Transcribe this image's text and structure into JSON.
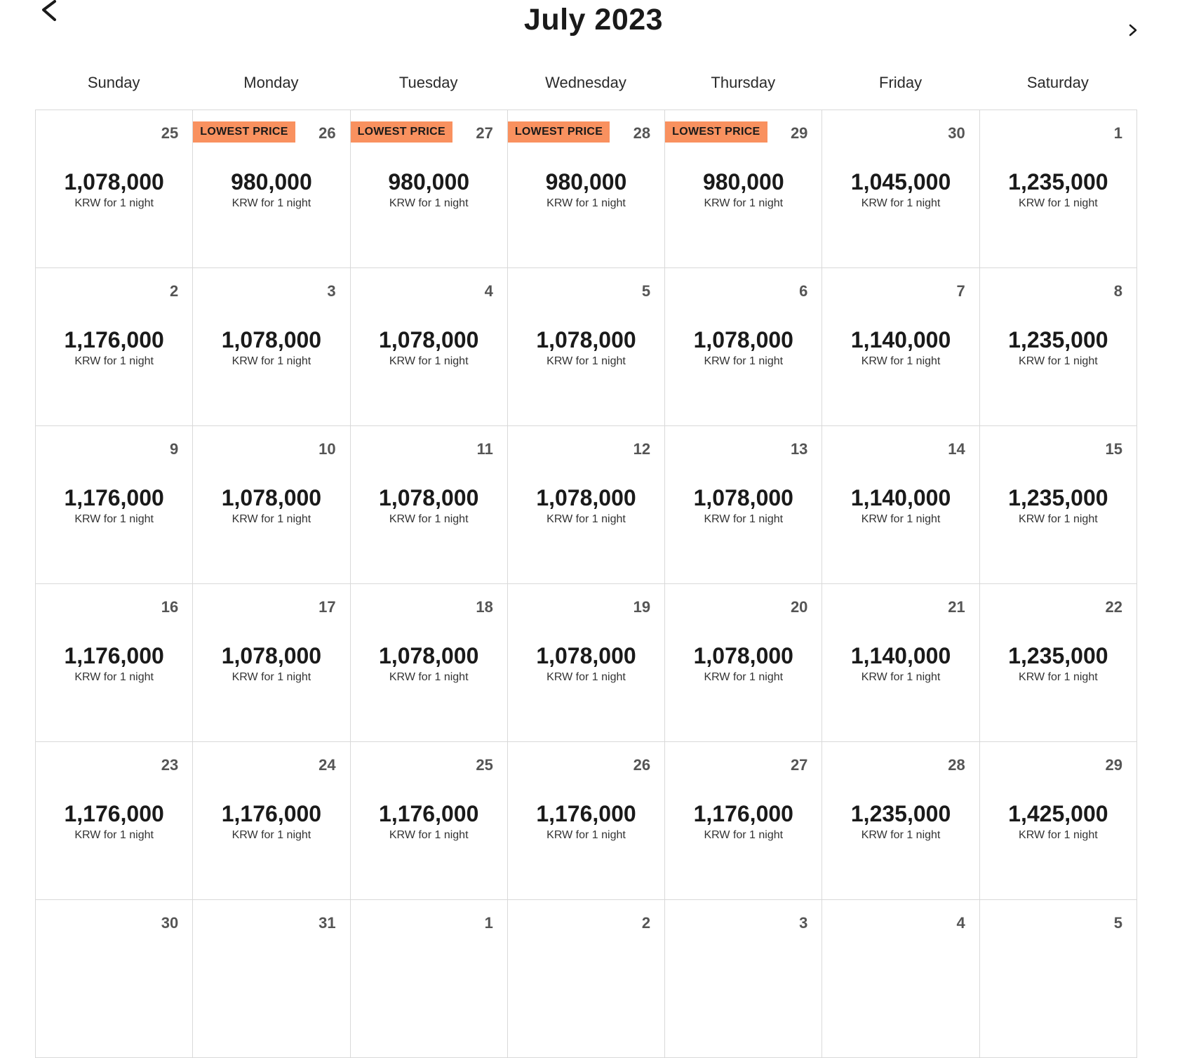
{
  "header": {
    "month_title": "July 2023"
  },
  "weekdays": [
    "Sunday",
    "Monday",
    "Tuesday",
    "Wednesday",
    "Thursday",
    "Friday",
    "Saturday"
  ],
  "badge_label": "LOWEST PRICE",
  "price_unit": "KRW for 1 night",
  "colors": {
    "badge": "#f9915f",
    "grid_line": "#d9d9d9"
  },
  "weeks": [
    [
      {
        "date": "25",
        "price": "1,078,000",
        "lowest": false
      },
      {
        "date": "26",
        "price": "980,000",
        "lowest": true
      },
      {
        "date": "27",
        "price": "980,000",
        "lowest": true
      },
      {
        "date": "28",
        "price": "980,000",
        "lowest": true
      },
      {
        "date": "29",
        "price": "980,000",
        "lowest": true
      },
      {
        "date": "30",
        "price": "1,045,000",
        "lowest": false
      },
      {
        "date": "1",
        "price": "1,235,000",
        "lowest": false
      }
    ],
    [
      {
        "date": "2",
        "price": "1,176,000",
        "lowest": false
      },
      {
        "date": "3",
        "price": "1,078,000",
        "lowest": false
      },
      {
        "date": "4",
        "price": "1,078,000",
        "lowest": false
      },
      {
        "date": "5",
        "price": "1,078,000",
        "lowest": false
      },
      {
        "date": "6",
        "price": "1,078,000",
        "lowest": false
      },
      {
        "date": "7",
        "price": "1,140,000",
        "lowest": false
      },
      {
        "date": "8",
        "price": "1,235,000",
        "lowest": false
      }
    ],
    [
      {
        "date": "9",
        "price": "1,176,000",
        "lowest": false
      },
      {
        "date": "10",
        "price": "1,078,000",
        "lowest": false
      },
      {
        "date": "11",
        "price": "1,078,000",
        "lowest": false
      },
      {
        "date": "12",
        "price": "1,078,000",
        "lowest": false
      },
      {
        "date": "13",
        "price": "1,078,000",
        "lowest": false
      },
      {
        "date": "14",
        "price": "1,140,000",
        "lowest": false
      },
      {
        "date": "15",
        "price": "1,235,000",
        "lowest": false
      }
    ],
    [
      {
        "date": "16",
        "price": "1,176,000",
        "lowest": false
      },
      {
        "date": "17",
        "price": "1,078,000",
        "lowest": false
      },
      {
        "date": "18",
        "price": "1,078,000",
        "lowest": false
      },
      {
        "date": "19",
        "price": "1,078,000",
        "lowest": false
      },
      {
        "date": "20",
        "price": "1,078,000",
        "lowest": false
      },
      {
        "date": "21",
        "price": "1,140,000",
        "lowest": false
      },
      {
        "date": "22",
        "price": "1,235,000",
        "lowest": false
      }
    ],
    [
      {
        "date": "23",
        "price": "1,176,000",
        "lowest": false
      },
      {
        "date": "24",
        "price": "1,176,000",
        "lowest": false
      },
      {
        "date": "25",
        "price": "1,176,000",
        "lowest": false
      },
      {
        "date": "26",
        "price": "1,176,000",
        "lowest": false
      },
      {
        "date": "27",
        "price": "1,176,000",
        "lowest": false
      },
      {
        "date": "28",
        "price": "1,235,000",
        "lowest": false
      },
      {
        "date": "29",
        "price": "1,425,000",
        "lowest": false
      }
    ],
    [
      {
        "date": "30",
        "price": "",
        "lowest": false
      },
      {
        "date": "31",
        "price": "",
        "lowest": false
      },
      {
        "date": "1",
        "price": "",
        "lowest": false
      },
      {
        "date": "2",
        "price": "",
        "lowest": false
      },
      {
        "date": "3",
        "price": "",
        "lowest": false
      },
      {
        "date": "4",
        "price": "",
        "lowest": false
      },
      {
        "date": "5",
        "price": "",
        "lowest": false
      }
    ]
  ]
}
